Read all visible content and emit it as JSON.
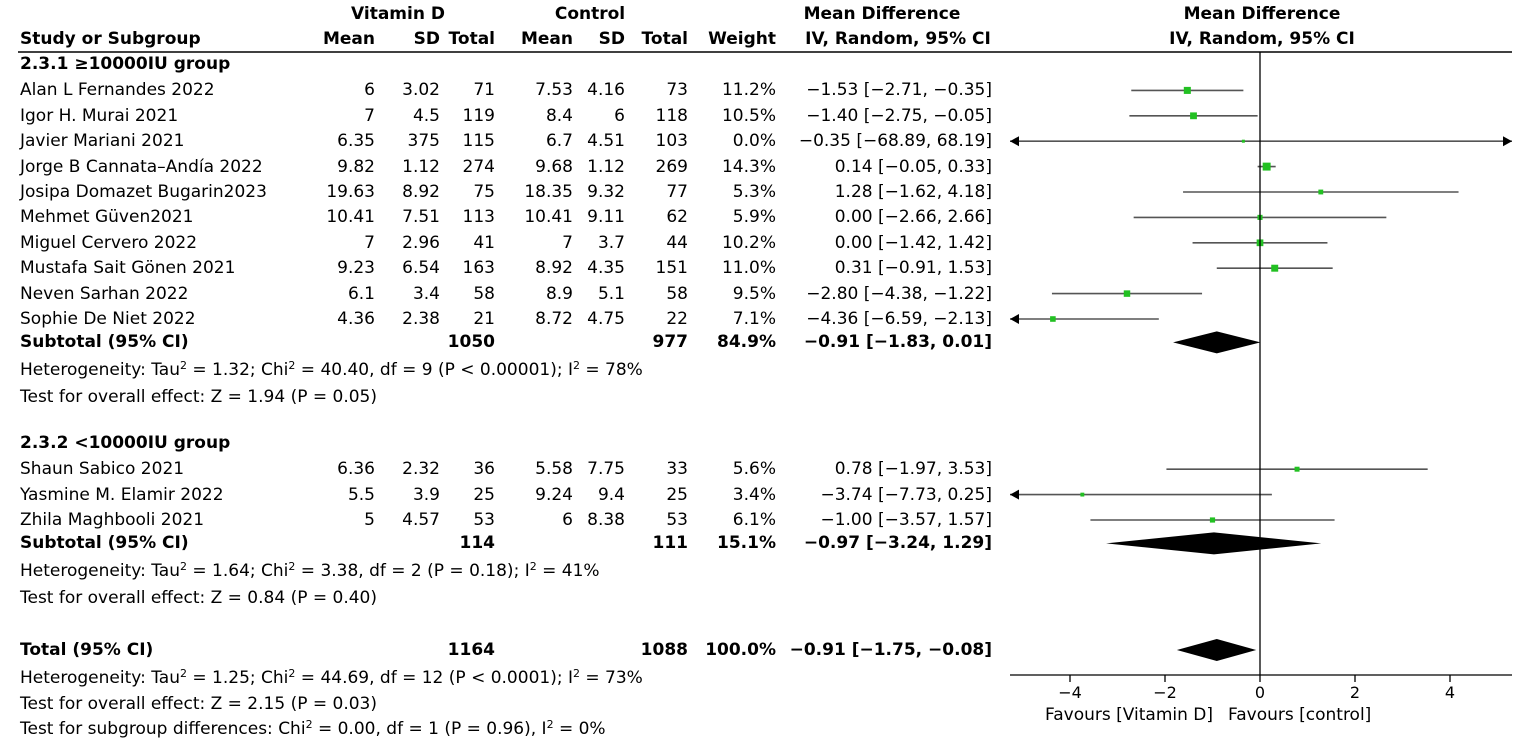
{
  "chart_data": {
    "type": "forest",
    "header": {
      "group1": "Vitamin D",
      "group2": "Control",
      "study_col": "Study or Subgroup",
      "mean": "Mean",
      "sd": "SD",
      "total": "Total",
      "weight": "Weight",
      "md_title": "Mean Difference",
      "md_method": "IV, Random, 95% CI",
      "plot_title": "Mean Difference",
      "plot_method": "IV, Random, 95% CI"
    },
    "subgroups": [
      {
        "title": "2.3.1 ≥10000IU group",
        "studies": [
          {
            "name": "Alan L Fernandes 2022",
            "m1": "6",
            "sd1": "3.02",
            "n1": "71",
            "m2": "7.53",
            "sd2": "4.16",
            "n2": "73",
            "weight": "11.2%",
            "ci_text": "−1.53 [−2.71, −0.35]",
            "md": -1.53,
            "lo": -2.71,
            "hi": -0.35,
            "w": 11.2
          },
          {
            "name": "Igor H. Murai 2021",
            "m1": "7",
            "sd1": "4.5",
            "n1": "119",
            "m2": "8.4",
            "sd2": "6",
            "n2": "118",
            "weight": "10.5%",
            "ci_text": "−1.40 [−2.75, −0.05]",
            "md": -1.4,
            "lo": -2.75,
            "hi": -0.05,
            "w": 10.5
          },
          {
            "name": "Javier Mariani 2021",
            "m1": "6.35",
            "sd1": "375",
            "n1": "115",
            "m2": "6.7",
            "sd2": "4.51",
            "n2": "103",
            "weight": "0.0%",
            "ci_text": "−0.35 [−68.89, 68.19]",
            "md": -0.35,
            "lo": -68.89,
            "hi": 68.19,
            "w": 0.0
          },
          {
            "name": "Jorge B Cannata–Andía 2022",
            "m1": "9.82",
            "sd1": "1.12",
            "n1": "274",
            "m2": "9.68",
            "sd2": "1.12",
            "n2": "269",
            "weight": "14.3%",
            "ci_text": "0.14 [−0.05, 0.33]",
            "md": 0.14,
            "lo": -0.05,
            "hi": 0.33,
            "w": 14.3
          },
          {
            "name": "Josipa Domazet Bugarin2023",
            "m1": "19.63",
            "sd1": "8.92",
            "n1": "75",
            "m2": "18.35",
            "sd2": "9.32",
            "n2": "77",
            "weight": "5.3%",
            "ci_text": "1.28 [−1.62, 4.18]",
            "md": 1.28,
            "lo": -1.62,
            "hi": 4.18,
            "w": 5.3
          },
          {
            "name": "Mehmet Güven2021",
            "m1": "10.41",
            "sd1": "7.51",
            "n1": "113",
            "m2": "10.41",
            "sd2": "9.11",
            "n2": "62",
            "weight": "5.9%",
            "ci_text": "0.00 [−2.66, 2.66]",
            "md": 0.0,
            "lo": -2.66,
            "hi": 2.66,
            "w": 5.9
          },
          {
            "name": "Miguel Cervero 2022",
            "m1": "7",
            "sd1": "2.96",
            "n1": "41",
            "m2": "7",
            "sd2": "3.7",
            "n2": "44",
            "weight": "10.2%",
            "ci_text": "0.00 [−1.42, 1.42]",
            "md": 0.0,
            "lo": -1.42,
            "hi": 1.42,
            "w": 10.2
          },
          {
            "name": "Mustafa Sait Gönen 2021",
            "m1": "9.23",
            "sd1": "6.54",
            "n1": "163",
            "m2": "8.92",
            "sd2": "4.35",
            "n2": "151",
            "weight": "11.0%",
            "ci_text": "0.31 [−0.91, 1.53]",
            "md": 0.31,
            "lo": -0.91,
            "hi": 1.53,
            "w": 11.0
          },
          {
            "name": "Neven Sarhan 2022",
            "m1": "6.1",
            "sd1": "3.4",
            "n1": "58",
            "m2": "8.9",
            "sd2": "5.1",
            "n2": "58",
            "weight": "9.5%",
            "ci_text": "−2.80 [−4.38, −1.22]",
            "md": -2.8,
            "lo": -4.38,
            "hi": -1.22,
            "w": 9.5
          },
          {
            "name": "Sophie De Niet 2022",
            "m1": "4.36",
            "sd1": "2.38",
            "n1": "21",
            "m2": "8.72",
            "sd2": "4.75",
            "n2": "22",
            "weight": "7.1%",
            "ci_text": "−4.36 [−6.59, −2.13]",
            "md": -4.36,
            "lo": -6.59,
            "hi": -2.13,
            "w": 7.1
          }
        ],
        "subtotal": {
          "label": "Subtotal (95% CI)",
          "n1": "1050",
          "n2": "977",
          "weight": "84.9%",
          "ci_text": "−0.91 [−1.83, 0.01]",
          "md": -0.91,
          "lo": -1.83,
          "hi": 0.01
        },
        "heterogeneity": {
          "prefix": "Heterogeneity: Tau",
          "mid1": " = 1.32; Chi",
          "mid2": " = 40.40, df = 9 (P < 0.00001); I",
          "end": " = 78%"
        },
        "overall": "Test for overall effect: Z = 1.94 (P = 0.05)"
      },
      {
        "title": "2.3.2 <10000IU group",
        "studies": [
          {
            "name": "Shaun Sabico 2021",
            "m1": "6.36",
            "sd1": "2.32",
            "n1": "36",
            "m2": "5.58",
            "sd2": "7.75",
            "n2": "33",
            "weight": "5.6%",
            "ci_text": "0.78 [−1.97, 3.53]",
            "md": 0.78,
            "lo": -1.97,
            "hi": 3.53,
            "w": 5.6
          },
          {
            "name": "Yasmine M. Elamir 2022",
            "m1": "5.5",
            "sd1": "3.9",
            "n1": "25",
            "m2": "9.24",
            "sd2": "9.4",
            "n2": "25",
            "weight": "3.4%",
            "ci_text": "−3.74 [−7.73, 0.25]",
            "md": -3.74,
            "lo": -7.73,
            "hi": 0.25,
            "w": 3.4
          },
          {
            "name": "Zhila Maghbooli 2021",
            "m1": "5",
            "sd1": "4.57",
            "n1": "53",
            "m2": "6",
            "sd2": "8.38",
            "n2": "53",
            "weight": "6.1%",
            "ci_text": "−1.00 [−3.57, 1.57]",
            "md": -1.0,
            "lo": -3.57,
            "hi": 1.57,
            "w": 6.1
          }
        ],
        "subtotal": {
          "label": "Subtotal (95% CI)",
          "n1": "114",
          "n2": "111",
          "weight": "15.1%",
          "ci_text": "−0.97 [−3.24, 1.29]",
          "md": -0.97,
          "lo": -3.24,
          "hi": 1.29
        },
        "heterogeneity": {
          "prefix": "Heterogeneity: Tau",
          "mid1": " = 1.64; Chi",
          "mid2": " = 3.38, df = 2 (P = 0.18); I",
          "end": " = 41%"
        },
        "overall": "Test for overall effect: Z = 0.84 (P = 0.40)"
      }
    ],
    "total": {
      "label": "Total (95% CI)",
      "n1": "1164",
      "n2": "1088",
      "weight": "100.0%",
      "ci_text": "−0.91 [−1.75, −0.08]",
      "md": -0.91,
      "lo": -1.75,
      "hi": -0.08
    },
    "total_heterogeneity": {
      "prefix": "Heterogeneity: Tau",
      "mid1": " = 1.25; Chi",
      "mid2": " = 44.69, df = 12 (P < 0.0001); I",
      "end": " = 73%"
    },
    "total_overall": "Test for overall effect: Z = 2.15 (P = 0.03)",
    "subgroup_diff": {
      "prefix": "Test for subgroup differences: Chi",
      "mid": " = 0.00, df = 1 (P = 0.96), I",
      "end": " = 0%"
    },
    "sup2": "2",
    "xaxis": {
      "min": -5.3,
      "max": 5.3,
      "ticks": [
        -4,
        -2,
        0,
        2,
        4
      ],
      "tick_labels": [
        "−4",
        "−2",
        "0",
        "2",
        "4"
      ]
    },
    "favours_left": "Favours [Vitamin D]",
    "favours_right": "Favours [control]",
    "colors": {
      "point": "#22c022",
      "diamond": "#000000",
      "line": "#555555"
    }
  }
}
